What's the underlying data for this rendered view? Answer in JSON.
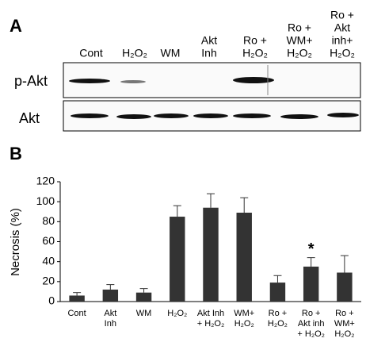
{
  "panel_a": {
    "label": "A",
    "lanes": [
      [
        "Cont"
      ],
      [
        "H₂O₂"
      ],
      [
        "WM"
      ],
      [
        "Akt",
        "Inh"
      ],
      [
        "Ro +",
        "H₂O₂"
      ],
      [
        "Ro +",
        "WM+",
        "H₂O₂"
      ],
      [
        "Ro +",
        "Akt",
        "inh+",
        "H₂O₂"
      ]
    ],
    "rows": [
      "p-Akt",
      "Akt"
    ]
  },
  "chart_data": {
    "type": "bar",
    "panel_label": "B",
    "ylabel": "Necrosis (%)",
    "categories": [
      [
        "Cont"
      ],
      [
        "Akt",
        "Inh"
      ],
      [
        "WM"
      ],
      [
        "H₂O₂"
      ],
      [
        "Akt Inh",
        "+ H₂O₂"
      ],
      [
        "WM+",
        "H₂O₂"
      ],
      [
        "Ro +",
        "H₂O₂"
      ],
      [
        "Ro +",
        "Akt inh",
        "+ H₂O₂"
      ],
      [
        "Ro +",
        "WM+",
        "H₂O₂"
      ]
    ],
    "values": [
      6,
      12,
      9,
      85,
      94,
      89,
      19,
      35,
      29
    ],
    "errors": [
      3,
      5,
      4,
      11,
      14,
      15,
      7,
      9,
      17
    ],
    "color": "#333333",
    "ylim": [
      0,
      120
    ],
    "yticks": [
      0,
      20,
      40,
      60,
      80,
      100,
      120
    ],
    "annotations": [
      {
        "index": 7,
        "text": "*"
      }
    ]
  }
}
